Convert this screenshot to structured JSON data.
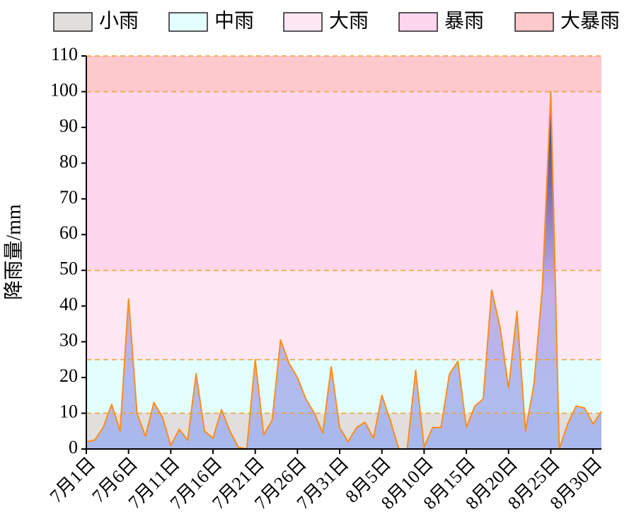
{
  "chart_data": {
    "type": "area",
    "ylabel": "降雨量/mm",
    "categories": [
      "7月1日",
      null,
      null,
      null,
      null,
      "7月6日",
      null,
      null,
      null,
      null,
      "7月11日",
      null,
      null,
      null,
      null,
      "7月16日",
      null,
      null,
      null,
      null,
      "7月21日",
      null,
      null,
      null,
      null,
      "7月26日",
      null,
      null,
      null,
      null,
      "7月31日",
      null,
      null,
      null,
      null,
      "8月5日",
      null,
      null,
      null,
      null,
      "8月10日",
      null,
      null,
      null,
      null,
      "8月15日",
      null,
      null,
      null,
      null,
      "8月20日",
      null,
      null,
      null,
      null,
      "8月25日",
      null,
      null,
      null,
      null,
      "8月30日",
      null
    ],
    "values": [
      2,
      2.5,
      6,
      12.5,
      5,
      42,
      10,
      3.5,
      13,
      9,
      1,
      5.5,
      2.5,
      21,
      5,
      3,
      11,
      5,
      0.5,
      0,
      25,
      4,
      8,
      30.5,
      24,
      20,
      14,
      10,
      4.5,
      23,
      6,
      2,
      6,
      7.5,
      3,
      15,
      8,
      0,
      0,
      22,
      0.5,
      6,
      6,
      21,
      24.5,
      6,
      12,
      14,
      44.5,
      34,
      17,
      38.5,
      5,
      18,
      45,
      100,
      0,
      7,
      12,
      11.5,
      7,
      10.5
    ],
    "line_color": "#ff8c1a",
    "ylim": [
      0,
      110
    ],
    "yticks": [
      0,
      10,
      20,
      30,
      40,
      50,
      60,
      70,
      80,
      90,
      100,
      110
    ],
    "bands": [
      {
        "name": "小雨",
        "color": "#e1dede",
        "range": [
          0,
          10
        ]
      },
      {
        "name": "中雨",
        "color": "#e2fefd",
        "range": [
          10,
          25
        ]
      },
      {
        "name": "大雨",
        "color": "#fde7f3",
        "range": [
          25,
          50
        ]
      },
      {
        "name": "暴雨",
        "color": "#fed6ee",
        "range": [
          50,
          100
        ]
      },
      {
        "name": "大暴雨",
        "color": "#fec9cc",
        "range": [
          100,
          110
        ]
      }
    ],
    "band_line_color": "#f0a030",
    "legend": "top"
  }
}
